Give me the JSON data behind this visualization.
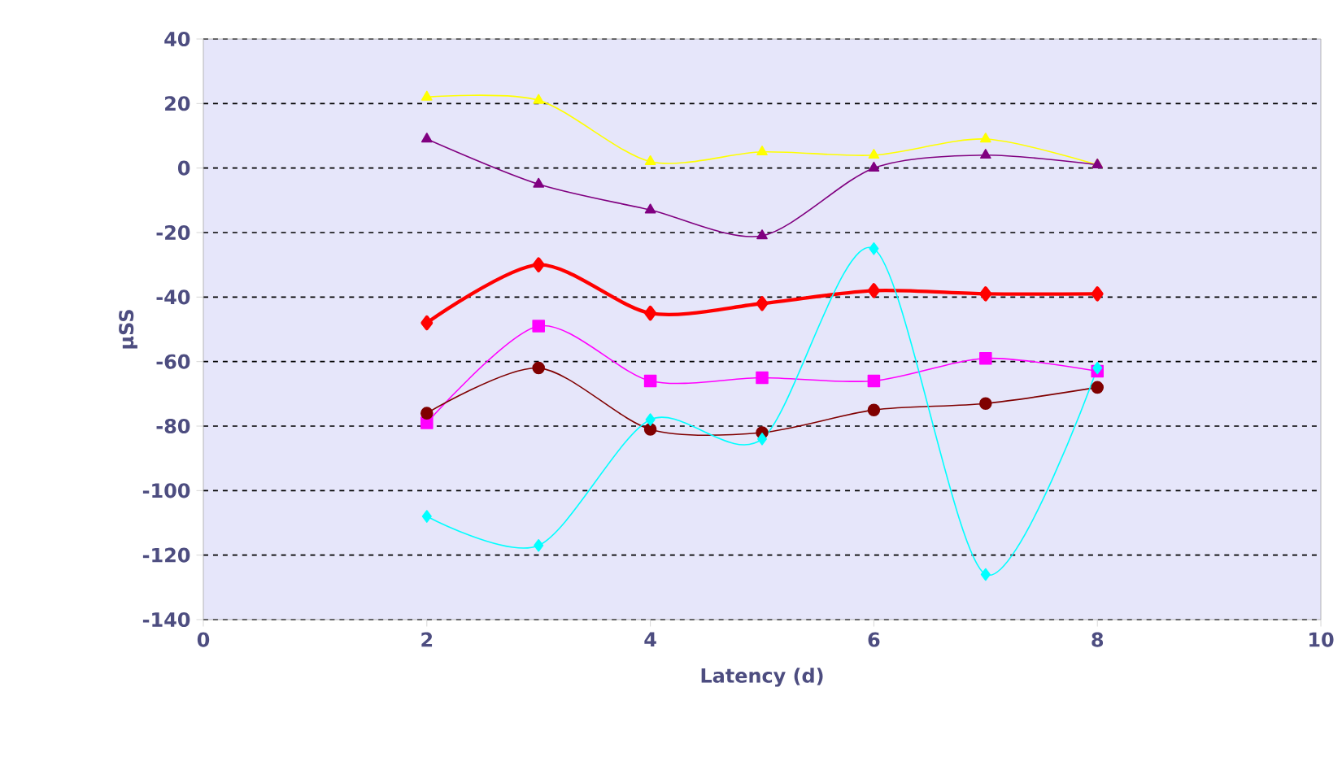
{
  "chart_data": {
    "type": "line",
    "xlabel": "Latency (d)",
    "ylabel": "µSS",
    "xlim": [
      0,
      10
    ],
    "xticks": [
      0,
      2,
      4,
      6,
      8,
      10
    ],
    "ylim": [
      -140,
      40
    ],
    "yticks": [
      -140,
      -120,
      -100,
      -80,
      -60,
      -40,
      -20,
      0,
      20,
      40
    ],
    "grid": "y",
    "series": [
      {
        "x": [
          2,
          3,
          4,
          5,
          6,
          7,
          8
        ],
        "color": "#ffff00",
        "marker": "triangle",
        "values": [
          22,
          21,
          2,
          5,
          4,
          9,
          1
        ]
      },
      {
        "x": [
          2,
          3,
          4,
          5,
          6,
          7,
          8
        ],
        "color": "#800080",
        "marker": "triangle",
        "values": [
          9,
          -5,
          -13,
          -21,
          0,
          4,
          1
        ]
      },
      {
        "x": [
          2,
          3,
          4,
          5,
          6,
          7,
          8
        ],
        "color": "#ff0000",
        "marker": "diamond",
        "values": [
          -48,
          -30,
          -45,
          -42,
          -38,
          -39,
          -39
        ]
      },
      {
        "x": [
          2,
          3,
          4,
          5,
          6,
          7,
          8
        ],
        "color": "#ff00ff",
        "marker": "square",
        "values": [
          -79,
          -49,
          -66,
          -65,
          -66,
          -59,
          -63
        ]
      },
      {
        "x": [
          2,
          3,
          4,
          5,
          6,
          7,
          8
        ],
        "color": "#800000",
        "marker": "circle",
        "values": [
          -76,
          -62,
          -81,
          -82,
          -75,
          -73,
          -68
        ]
      },
      {
        "x": [
          2,
          3,
          4,
          5,
          6,
          7,
          8
        ],
        "color": "#00ffff",
        "marker": "diamond",
        "values": [
          -108,
          -117,
          -78,
          -84,
          -25,
          -126,
          -62
        ]
      }
    ]
  }
}
